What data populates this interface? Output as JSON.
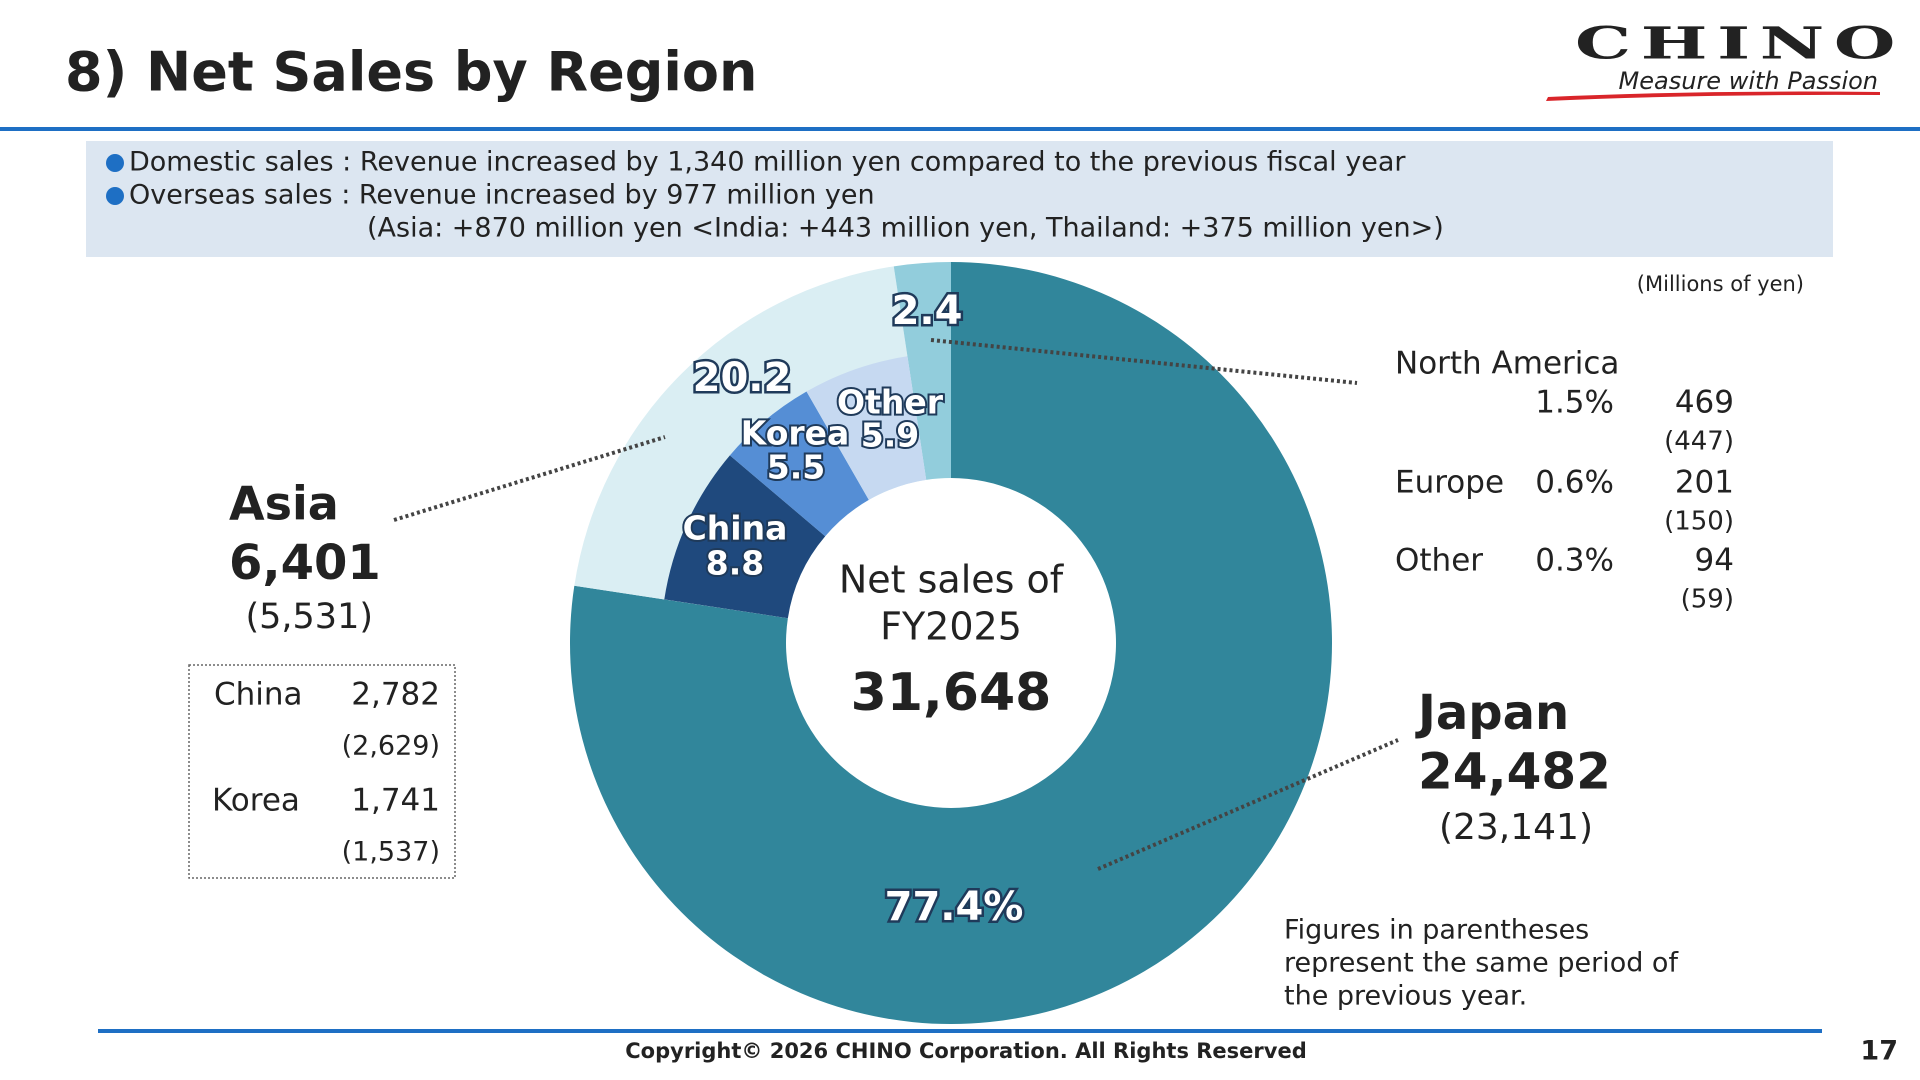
{
  "header": {
    "title": "8) Net Sales by Region",
    "logo": "CHINO",
    "tagline": "Measure with Passion"
  },
  "notes": [
    "Domestic sales : Revenue increased by 1,340 million yen compared to the previous  fiscal year",
    "Overseas sales : Revenue increased by 977 million yen",
    "(Asia: +870 million yen <India: +443 million yen, Thailand: +375 million yen>)"
  ],
  "unit": "(Millions of yen)",
  "chart_data": {
    "type": "donut",
    "center_label": [
      "Net sales of",
      "FY2025"
    ],
    "total": "31,648",
    "values": [
      77.4,
      20.2,
      2.4
    ],
    "value_labels": [
      "77.4%",
      "20.2",
      "2.4"
    ],
    "colors": [
      "#31869b",
      "#daeef3",
      "#92cddc"
    ],
    "inner": {
      "categories": [
        "China",
        "Korea",
        "Other"
      ],
      "values": [
        8.8,
        5.5,
        5.9
      ],
      "colors": [
        "#1f497d",
        "#558ed5",
        "#c6d9f1"
      ]
    }
  },
  "japan": {
    "label": "Japan",
    "value": "24,482",
    "previous": "(23,141)"
  },
  "asia": {
    "label": "Asia",
    "value": "6,401",
    "previous": "(5,531)",
    "breakdown": [
      {
        "name": "China",
        "value": "2,782",
        "previous": "(2,629)"
      },
      {
        "name": "Korea",
        "value": "1,741",
        "previous": "(1,537)"
      }
    ]
  },
  "other_regions": [
    {
      "name": "North America",
      "share": "1.5%",
      "value": "469",
      "previous": "(447)"
    },
    {
      "name": "Europe",
      "share": "0.6%",
      "value": "201",
      "previous": "(150)"
    },
    {
      "name": "Other",
      "share": "0.3%",
      "value": "94",
      "previous": "(59)"
    }
  ],
  "footnote": [
    "Figures in parentheses",
    "represent the same period of",
    "the previous year."
  ],
  "footer": {
    "copyright": "Copyright© 2026 CHINO Corporation. All Rights Reserved",
    "page": "17"
  }
}
